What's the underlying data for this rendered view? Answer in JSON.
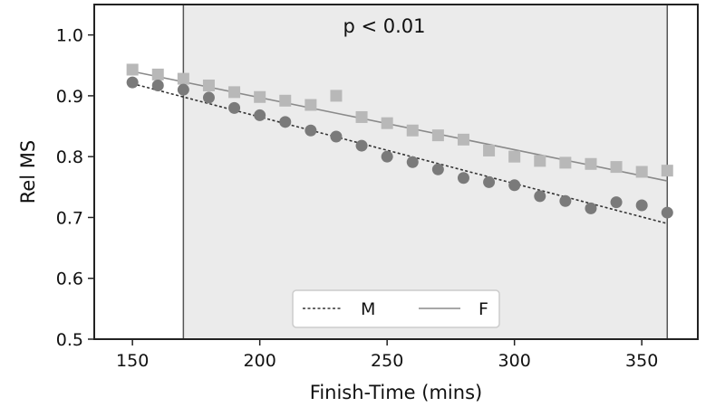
{
  "chart_data": {
    "type": "scatter",
    "xlabel": "Finish-Time (mins)",
    "ylabel": "Rel MS",
    "xlim": [
      135,
      372
    ],
    "ylim": [
      0.5,
      1.05
    ],
    "xticks": [
      150,
      200,
      250,
      300,
      350
    ],
    "yticks": [
      0.5,
      0.6,
      0.7,
      0.8,
      0.9,
      1.0
    ],
    "xtick_labels": [
      "150",
      "200",
      "250",
      "300",
      "350"
    ],
    "ytick_labels": [
      "0.5",
      "0.6",
      "0.7",
      "0.8",
      "0.9",
      "1.0"
    ],
    "annotation": "p < 0.01",
    "shaded_region": {
      "x": [
        170,
        360
      ],
      "color": "#ebebeb"
    },
    "grid": false,
    "legend_position": "bottom-center",
    "series": [
      {
        "name": "M",
        "marker": "circle",
        "color": "#7a7a7a",
        "line_style": "dashed",
        "line_color": "#333333",
        "x": [
          150,
          160,
          170,
          180,
          190,
          200,
          210,
          220,
          230,
          240,
          250,
          260,
          270,
          280,
          290,
          300,
          310,
          320,
          330,
          340,
          350,
          360
        ],
        "y": [
          0.922,
          0.917,
          0.91,
          0.897,
          0.88,
          0.868,
          0.857,
          0.843,
          0.833,
          0.818,
          0.8,
          0.791,
          0.779,
          0.765,
          0.758,
          0.753,
          0.735,
          0.727,
          0.715,
          0.725,
          0.72,
          0.708
        ],
        "fit": {
          "x": [
            150,
            360
          ],
          "y": [
            0.92,
            0.69
          ]
        }
      },
      {
        "name": "F",
        "marker": "square",
        "color": "#b8b8b8",
        "line_style": "solid",
        "line_color": "#8a8a8a",
        "x": [
          150,
          160,
          170,
          180,
          190,
          200,
          210,
          220,
          230,
          240,
          250,
          260,
          270,
          280,
          290,
          300,
          310,
          320,
          330,
          340,
          350,
          360
        ],
        "y": [
          0.943,
          0.935,
          0.928,
          0.917,
          0.906,
          0.898,
          0.892,
          0.885,
          0.9,
          0.865,
          0.855,
          0.843,
          0.835,
          0.828,
          0.81,
          0.8,
          0.793,
          0.79,
          0.788,
          0.783,
          0.775,
          0.777
        ],
        "fit": {
          "x": [
            150,
            360
          ],
          "y": [
            0.94,
            0.76
          ]
        }
      }
    ]
  }
}
